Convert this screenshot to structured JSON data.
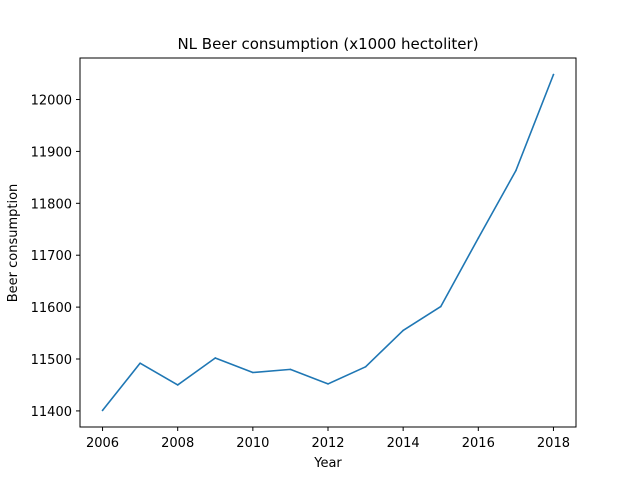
{
  "chart_data": {
    "type": "line",
    "title": "NL Beer consumption (x1000 hectoliter)",
    "xlabel": "Year",
    "ylabel": "Beer consumption",
    "xlim": [
      2005.4,
      2018.6
    ],
    "ylim": [
      11369,
      12080
    ],
    "x_ticks": [
      2006,
      2008,
      2010,
      2012,
      2014,
      2016,
      2018
    ],
    "y_ticks": [
      11400,
      11500,
      11600,
      11700,
      11800,
      11900,
      12000
    ],
    "grid": false,
    "series": [
      {
        "color": "#1f77b4",
        "x": [
          2006,
          2007,
          2008,
          2009,
          2010,
          2011,
          2012,
          2013,
          2014,
          2015,
          2016,
          2017,
          2018
        ],
        "y": [
          11401,
          11492,
          11450,
          11502,
          11474,
          11480,
          11452,
          11485,
          11555,
          11601,
          11733,
          11863,
          12048
        ]
      }
    ]
  }
}
